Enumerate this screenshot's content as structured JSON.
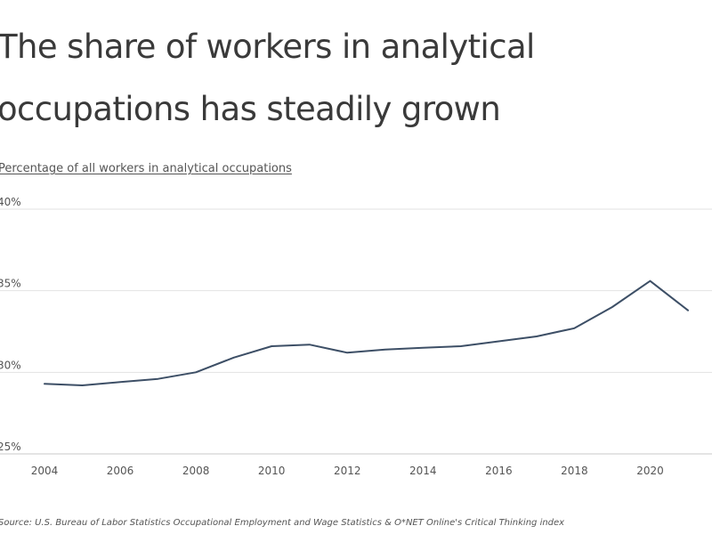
{
  "chart_data": {
    "type": "line",
    "title": "The share of workers in analytical occupations has steadily grown",
    "subtitle": "Percentage of all workers in analytical occupations",
    "source": "Source: U.S. Bureau of Labor Statistics Occupational Employment and Wage Statistics & O*NET Online's Critical Thinking index",
    "x": [
      2004,
      2005,
      2006,
      2007,
      2008,
      2009,
      2010,
      2011,
      2012,
      2013,
      2014,
      2015,
      2016,
      2017,
      2018,
      2019,
      2020,
      2021
    ],
    "series": [
      {
        "values": [
          29.3,
          29.2,
          29.4,
          29.6,
          30.0,
          30.9,
          31.6,
          31.7,
          31.2,
          31.4,
          31.5,
          31.6,
          31.9,
          32.2,
          32.7,
          34.0,
          35.6,
          33.8
        ],
        "color": "#3d4f66"
      }
    ],
    "xticks": [
      2004,
      2006,
      2008,
      2010,
      2012,
      2014,
      2016,
      2018,
      2020
    ],
    "xtick_labels": [
      "2004",
      "2006",
      "2008",
      "2010",
      "2012",
      "2014",
      "2016",
      "2018",
      "2020"
    ],
    "yticks": [
      25,
      30,
      35,
      40
    ],
    "ytick_labels": [
      "25%",
      "30%",
      "35%",
      "40%"
    ],
    "xlim": [
      2004,
      2021
    ],
    "ylim": [
      25,
      40
    ],
    "grid": "horizontal",
    "legend": "none"
  }
}
